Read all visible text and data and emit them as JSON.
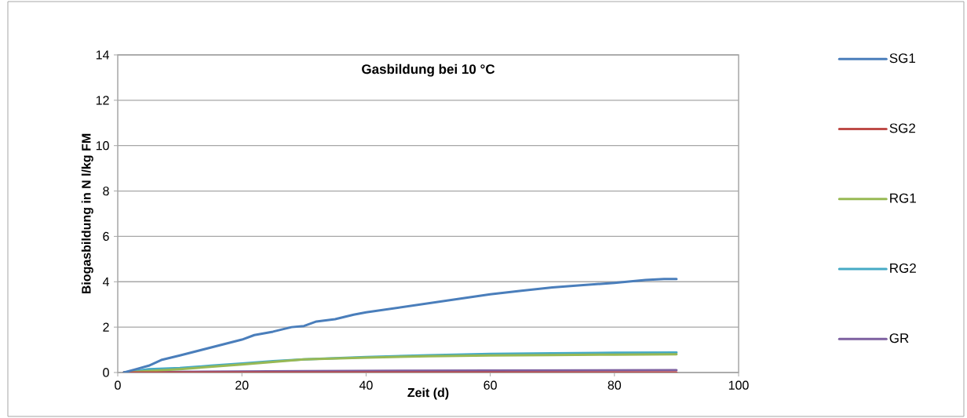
{
  "chart_data": {
    "type": "line",
    "title": "Gasbildung bei 10 °C",
    "xlabel": "Zeit (d)",
    "ylabel": "Biogasbildung in N l/kg FM",
    "xlim": [
      0,
      100
    ],
    "xticks": [
      0,
      20,
      40,
      60,
      80,
      100
    ],
    "ylim": [
      0,
      14
    ],
    "yticks": [
      0,
      2,
      4,
      6,
      8,
      10,
      12,
      14
    ],
    "grid": "y",
    "legend": "right",
    "marker": "none",
    "line_style": "solid",
    "series": [
      {
        "name": "SG1",
        "color": "#4a7ebb",
        "x": [
          1,
          3,
          5,
          7,
          10,
          15,
          20,
          22,
          25,
          28,
          30,
          32,
          35,
          38,
          40,
          45,
          50,
          55,
          60,
          65,
          70,
          75,
          80,
          85,
          88,
          90
        ],
        "values": [
          0,
          0.15,
          0.3,
          0.55,
          0.75,
          1.1,
          1.45,
          1.65,
          1.8,
          2.0,
          2.05,
          2.25,
          2.35,
          2.55,
          2.65,
          2.85,
          3.05,
          3.25,
          3.45,
          3.6,
          3.75,
          3.85,
          3.95,
          4.08,
          4.12,
          4.12
        ]
      },
      {
        "name": "SG2",
        "color": "#be4b48",
        "x": [
          1,
          30,
          60,
          90
        ],
        "values": [
          0,
          0,
          0,
          0
        ]
      },
      {
        "name": "RG1",
        "color": "#98b954",
        "x": [
          1,
          10,
          20,
          30,
          40,
          50,
          60,
          70,
          80,
          90
        ],
        "values": [
          0,
          0.15,
          0.35,
          0.58,
          0.66,
          0.72,
          0.75,
          0.77,
          0.79,
          0.8
        ]
      },
      {
        "name": "RG2",
        "color": "#46aac5",
        "x": [
          1,
          5,
          10,
          15,
          20,
          25,
          30,
          40,
          50,
          60,
          70,
          80,
          90
        ],
        "values": [
          0,
          0.15,
          0.2,
          0.3,
          0.4,
          0.5,
          0.58,
          0.68,
          0.76,
          0.82,
          0.85,
          0.87,
          0.88
        ]
      },
      {
        "name": "GR",
        "color": "#7d60a0",
        "x": [
          1,
          30,
          60,
          90
        ],
        "values": [
          0.02,
          0.06,
          0.09,
          0.1
        ]
      }
    ]
  }
}
